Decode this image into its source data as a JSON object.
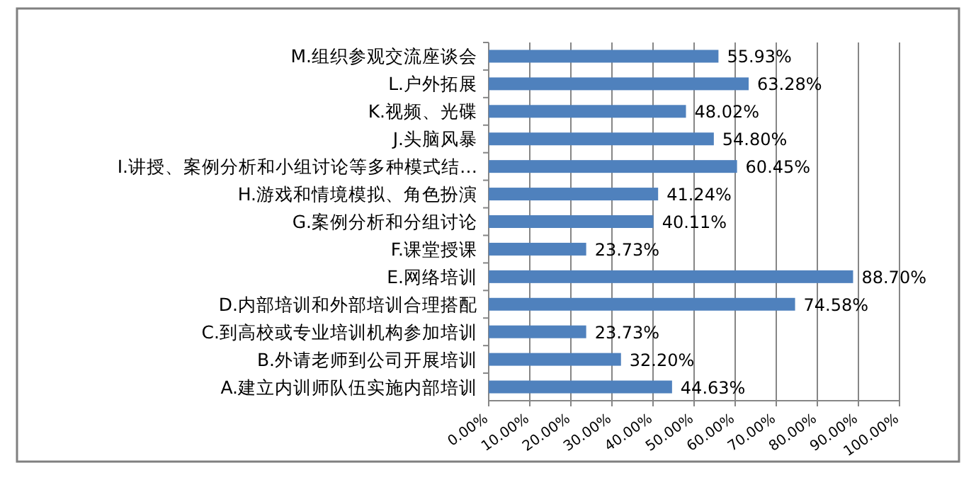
{
  "chart_data": {
    "type": "bar",
    "orientation": "horizontal",
    "categories": [
      "M.组织参观交流座谈会",
      "L.户外拓展",
      "K.视频、光碟",
      "J.头脑风暴",
      "I.讲授、案例分析和小组讨论等多种模式结…",
      "H.游戏和情境模拟、角色扮演",
      "G.案例分析和分组讨论",
      "F.课堂授课",
      "E.网络培训",
      "D.内部培训和外部培训合理搭配",
      "C.到高校或专业培训机构参加培训",
      "B.外请老师到公司开展培训",
      "A.建立内训师队伍实施内部培训"
    ],
    "values": [
      55.93,
      63.28,
      48.02,
      54.8,
      60.45,
      41.24,
      40.11,
      23.73,
      88.7,
      74.58,
      23.73,
      32.2,
      44.63
    ],
    "value_labels": [
      "55.93%",
      "63.28%",
      "48.02%",
      "54.80%",
      "60.45%",
      "41.24%",
      "40.11%",
      "23.73%",
      "88.70%",
      "74.58%",
      "23.73%",
      "32.20%",
      "44.63%"
    ],
    "color": "#4f81bd",
    "xlim": [
      0,
      100
    ],
    "xticks": [
      {
        "value": 0,
        "label": "0.00%"
      },
      {
        "value": 10,
        "label": "10.00%"
      },
      {
        "value": 20,
        "label": "20.00%"
      },
      {
        "value": 30,
        "label": "30.00%"
      },
      {
        "value": 40,
        "label": "40.00%"
      },
      {
        "value": 50,
        "label": "50.00%"
      },
      {
        "value": 60,
        "label": "60.00%"
      },
      {
        "value": 70,
        "label": "70.00%"
      },
      {
        "value": 80,
        "label": "80.00%"
      },
      {
        "value": 90,
        "label": "90.00%"
      },
      {
        "value": 100,
        "label": "100.00%"
      }
    ],
    "grid": "x"
  }
}
